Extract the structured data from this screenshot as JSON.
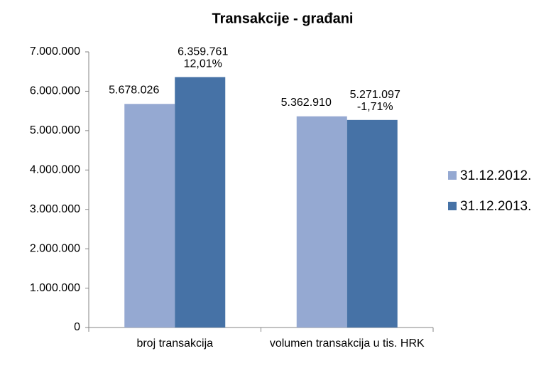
{
  "chart_data": {
    "type": "bar",
    "title": "Transakcije - građani",
    "categories": [
      "broj transakcija",
      "volumen transakcija u tis. HRK"
    ],
    "series": [
      {
        "name": "31.12.2012.",
        "color": "#95a9d2",
        "values": [
          5678026,
          5362910
        ],
        "value_labels": [
          "5.678.026",
          "5.362.910"
        ]
      },
      {
        "name": "31.12.2013.",
        "color": "#4672a6",
        "values": [
          6359761,
          5271097
        ],
        "value_labels": [
          "6.359.761",
          "5.271.097"
        ],
        "changes": [
          "12,01%",
          "-1,71%"
        ]
      }
    ],
    "ylim": [
      0,
      7000000
    ],
    "yticks": [
      0,
      {
        "value": 1000000,
        "label": "1.000.000"
      },
      {
        "value": 2000000,
        "label": "2.000.000"
      },
      {
        "value": 3000000,
        "label": "3.000.000"
      },
      {
        "value": 4000000,
        "label": "4.000.000"
      },
      {
        "value": 5000000,
        "label": "5.000.000"
      },
      {
        "value": 6000000,
        "label": "6.000.000"
      },
      {
        "value": 7000000,
        "label": "7.000.000"
      }
    ],
    "legend": "right"
  }
}
